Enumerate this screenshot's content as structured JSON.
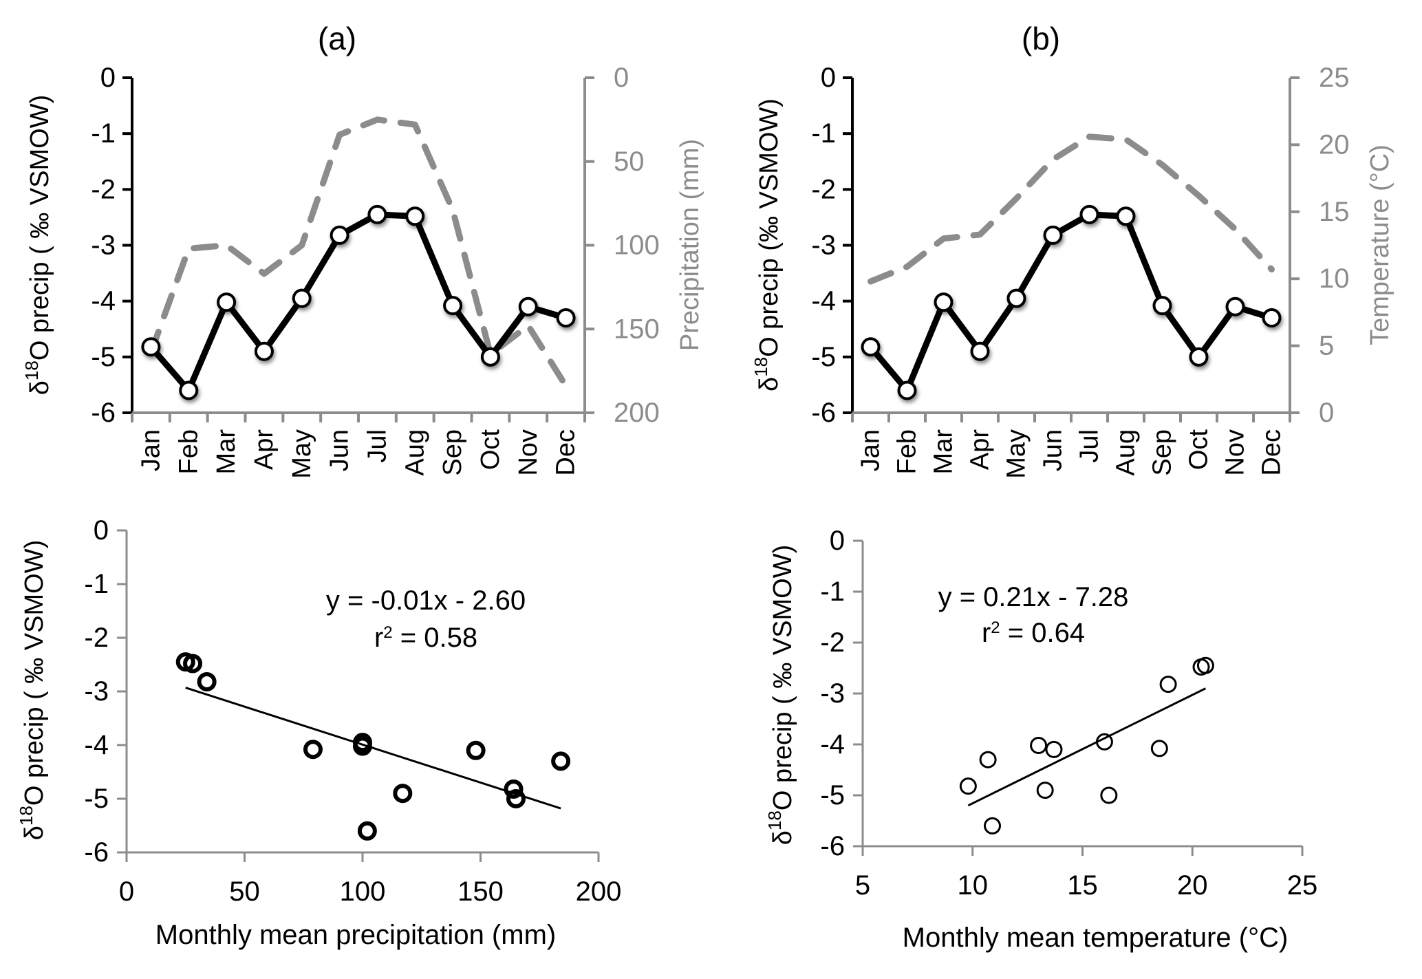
{
  "chart_data": [
    {
      "id": "a_top",
      "type": "line",
      "title": "(a)",
      "categories": [
        "Jan",
        "Feb",
        "Mar",
        "Apr",
        "May",
        "Jun",
        "Jul",
        "Aug",
        "Sep",
        "Oct",
        "Nov",
        "Dec"
      ],
      "ylabel": "δ18O precip ( ‰ VSMOW)",
      "ylabel_parts": {
        "delta": "δ",
        "sup": "18",
        "rest": "O precip ( ‰ VSMOW)"
      },
      "ylim": [
        -6,
        0
      ],
      "yticks": [
        "0",
        "-1",
        "-2",
        "-3",
        "-4",
        "-5",
        "-6"
      ],
      "y2label": "Precipitation (mm)",
      "y2lim": [
        200,
        0
      ],
      "y2ticks": [
        "0",
        "50",
        "100",
        "150",
        "200"
      ],
      "y2_inverted": true,
      "series": [
        {
          "name": "δ18O precip",
          "axis": "left",
          "style": "solid-black-markers",
          "color": "#000000",
          "values": [
            -4.82,
            -5.6,
            -4.02,
            -4.9,
            -3.95,
            -2.82,
            -2.45,
            -2.48,
            -4.08,
            -5.0,
            -4.1,
            -4.3
          ]
        },
        {
          "name": "Precipitation",
          "axis": "right",
          "style": "dashed-gray",
          "color": "#8c8c8c",
          "values": [
            164,
            102,
            100,
            117,
            100,
            34,
            25,
            28,
            79,
            165,
            148,
            184
          ]
        }
      ]
    },
    {
      "id": "b_top",
      "type": "line",
      "title": "(b)",
      "categories": [
        "Jan",
        "Feb",
        "Mar",
        "Apr",
        "May",
        "Jun",
        "Jul",
        "Aug",
        "Sep",
        "Oct",
        "Nov",
        "Dec"
      ],
      "ylabel": "δ18O precip (‰ VSMOW)",
      "ylabel_parts": {
        "delta": "δ",
        "sup": "18",
        "rest": "O precip (‰ VSMOW)"
      },
      "ylim": [
        -6,
        0
      ],
      "yticks": [
        "0",
        "-1",
        "-2",
        "-3",
        "-4",
        "-5",
        "-6"
      ],
      "y2label": "Temperature (°C)",
      "y2lim": [
        0,
        25
      ],
      "y2ticks": [
        "25",
        "20",
        "15",
        "10",
        "5",
        "0"
      ],
      "series": [
        {
          "name": "δ18O precip",
          "axis": "left",
          "style": "solid-black-markers",
          "color": "#000000",
          "values": [
            -4.82,
            -5.6,
            -4.02,
            -4.9,
            -3.95,
            -2.82,
            -2.45,
            -2.48,
            -4.08,
            -5.0,
            -4.1,
            -4.3
          ]
        },
        {
          "name": "Temperature",
          "axis": "right",
          "style": "dashed-gray",
          "color": "#8c8c8c",
          "values": [
            9.8,
            10.9,
            13.0,
            13.3,
            16.0,
            18.9,
            20.6,
            20.4,
            18.5,
            16.2,
            13.7,
            10.7
          ]
        }
      ]
    },
    {
      "id": "a_scatter",
      "type": "scatter",
      "xlabel": "Monthly mean precipitation (mm)",
      "ylabel": "δ18O precip ( ‰ VSMOW)",
      "ylabel_parts": {
        "delta": "δ",
        "sup": "18",
        "rest": "O precip ( ‰ VSMOW)"
      },
      "xlim": [
        0,
        200
      ],
      "ylim": [
        -6,
        0
      ],
      "xticks": [
        "0",
        "50",
        "100",
        "150",
        "200"
      ],
      "yticks": [
        "0",
        "-1",
        "-2",
        "-3",
        "-4",
        "-5",
        "-6"
      ],
      "points": {
        "x": [
          164,
          102,
          100,
          117,
          100,
          34,
          25,
          28,
          79,
          165,
          148,
          184
        ],
        "y": [
          -4.82,
          -5.6,
          -4.02,
          -4.9,
          -3.95,
          -2.82,
          -2.45,
          -2.48,
          -4.08,
          -5.0,
          -4.1,
          -4.3
        ]
      },
      "trendline": {
        "slope": -0.01,
        "intercept": -2.6,
        "x_range": [
          25,
          184
        ],
        "y_range": [
          -2.93,
          -5.18
        ]
      },
      "equation": "y = -0.01x - 2.60",
      "r2_label": "r",
      "r2_sup": "2",
      "r2_value": " = 0.58"
    },
    {
      "id": "b_scatter",
      "type": "scatter",
      "xlabel": "Monthly mean temperature (°C)",
      "ylabel": "δ18O precip ( ‰ VSMOW)",
      "ylabel_parts": {
        "delta": "δ",
        "sup": "18",
        "rest": "O precip ( ‰ VSMOW)"
      },
      "xlim": [
        5,
        25
      ],
      "ylim": [
        -6,
        0
      ],
      "xticks": [
        "5",
        "10",
        "15",
        "20",
        "25"
      ],
      "yticks": [
        "0",
        "-1",
        "-2",
        "-3",
        "-4",
        "-5",
        "-6"
      ],
      "points": {
        "x": [
          9.8,
          10.9,
          13.0,
          13.3,
          16.0,
          18.9,
          20.6,
          20.4,
          18.5,
          16.2,
          13.7,
          10.7
        ],
        "y": [
          -4.82,
          -5.6,
          -4.02,
          -4.9,
          -3.95,
          -2.82,
          -2.45,
          -2.48,
          -4.08,
          -5.0,
          -4.1,
          -4.3
        ]
      },
      "trendline": {
        "slope": 0.21,
        "intercept": -7.28,
        "x_range": [
          9.8,
          20.6
        ],
        "y_range": [
          -5.2,
          -2.9
        ]
      },
      "equation": "y = 0.21x - 7.28",
      "r2_label": "r",
      "r2_sup": "2",
      "r2_value": " = 0.64"
    }
  ]
}
